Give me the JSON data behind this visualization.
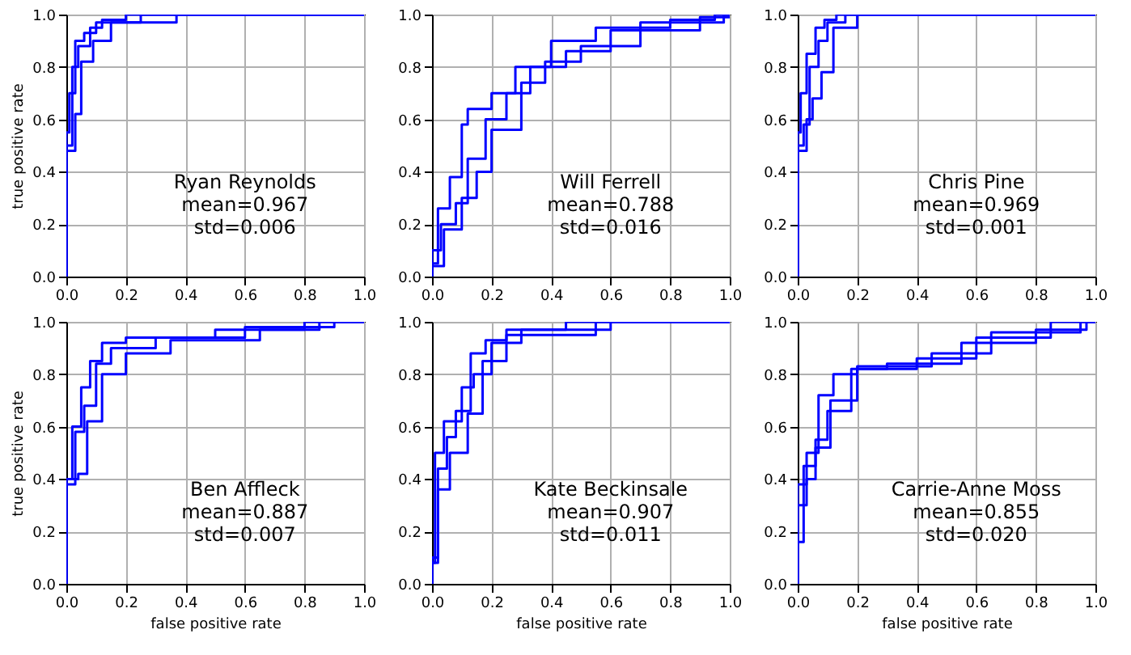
{
  "chart_data": [
    {
      "type": "line",
      "ylabel": "true positive rate",
      "annotations": [
        "Ryan Reynolds",
        "mean=0.967",
        "std=0.006"
      ],
      "grid": true,
      "xlim": [
        0,
        1
      ],
      "ylim": [
        0,
        1
      ],
      "xticks": [
        {
          "value": 0,
          "label": "0.0"
        },
        {
          "value": 0.2,
          "label": "0.2"
        },
        {
          "value": 0.4,
          "label": "0.4"
        },
        {
          "value": 0.6,
          "label": "0.6"
        },
        {
          "value": 0.8,
          "label": "0.8"
        },
        {
          "value": 1,
          "label": "1.0"
        }
      ],
      "yticks": [
        {
          "value": 0,
          "label": "0.0"
        },
        {
          "value": 0.2,
          "label": "0.2"
        },
        {
          "value": 0.4,
          "label": "0.4"
        },
        {
          "value": 0.6,
          "label": "0.6"
        },
        {
          "value": 0.8,
          "label": "0.8"
        },
        {
          "value": 1,
          "label": "1.0"
        }
      ],
      "series": [
        {
          "color": "#0000ff",
          "x": [
            0,
            0,
            0.02,
            0.02,
            0.04,
            0.04,
            0.08,
            0.08,
            0.12,
            0.12,
            0.2,
            0.2,
            1
          ],
          "values": [
            0,
            0.5,
            0.5,
            0.8,
            0.8,
            0.88,
            0.88,
            0.95,
            0.95,
            0.98,
            0.98,
            1,
            1
          ]
        },
        {
          "color": "#0000ff",
          "x": [
            0,
            0,
            0.01,
            0.01,
            0.03,
            0.03,
            0.06,
            0.06,
            0.1,
            0.1,
            0.25,
            0.25,
            1
          ],
          "values": [
            0,
            0.55,
            0.55,
            0.7,
            0.7,
            0.9,
            0.9,
            0.93,
            0.93,
            0.97,
            0.97,
            1,
            1
          ]
        },
        {
          "color": "#0000ff",
          "x": [
            0,
            0,
            0.03,
            0.03,
            0.05,
            0.05,
            0.09,
            0.09,
            0.15,
            0.15,
            0.37,
            0.37,
            1
          ],
          "values": [
            0,
            0.48,
            0.48,
            0.62,
            0.62,
            0.82,
            0.82,
            0.9,
            0.9,
            0.97,
            0.97,
            1,
            1
          ]
        }
      ]
    },
    {
      "type": "line",
      "annotations": [
        "Will Ferrell",
        "mean=0.788",
        "std=0.016"
      ],
      "grid": true,
      "xlim": [
        0,
        1
      ],
      "ylim": [
        0,
        1
      ],
      "xticks": [
        {
          "value": 0,
          "label": "0.0"
        },
        {
          "value": 0.2,
          "label": "0.2"
        },
        {
          "value": 0.4,
          "label": "0.4"
        },
        {
          "value": 0.6,
          "label": "0.6"
        },
        {
          "value": 0.8,
          "label": "0.8"
        },
        {
          "value": 1,
          "label": "1.0"
        }
      ],
      "yticks": [
        {
          "value": 0,
          "label": "0.0"
        },
        {
          "value": 0.2,
          "label": "0.2"
        },
        {
          "value": 0.4,
          "label": "0.4"
        },
        {
          "value": 0.6,
          "label": "0.6"
        },
        {
          "value": 0.8,
          "label": "0.8"
        },
        {
          "value": 1,
          "label": "1.0"
        }
      ],
      "series": [
        {
          "color": "#0000ff",
          "x": [
            0,
            0,
            0.02,
            0.02,
            0.06,
            0.06,
            0.1,
            0.1,
            0.12,
            0.12,
            0.2,
            0.2,
            0.28,
            0.28,
            0.4,
            0.4,
            0.55,
            0.55,
            0.8,
            0.8,
            0.95,
            0.95,
            1
          ],
          "values": [
            0,
            0.05,
            0.05,
            0.26,
            0.26,
            0.38,
            0.38,
            0.58,
            0.58,
            0.64,
            0.64,
            0.7,
            0.7,
            0.8,
            0.8,
            0.9,
            0.9,
            0.95,
            0.95,
            0.98,
            0.98,
            1,
            1
          ]
        },
        {
          "color": "#0000ff",
          "x": [
            0,
            0,
            0.03,
            0.03,
            0.08,
            0.08,
            0.12,
            0.12,
            0.18,
            0.18,
            0.25,
            0.25,
            0.33,
            0.33,
            0.45,
            0.45,
            0.6,
            0.6,
            0.9,
            0.9,
            1
          ],
          "values": [
            0,
            0.1,
            0.1,
            0.2,
            0.2,
            0.28,
            0.28,
            0.45,
            0.45,
            0.6,
            0.6,
            0.7,
            0.7,
            0.8,
            0.8,
            0.86,
            0.86,
            0.94,
            0.94,
            0.99,
            0.99
          ]
        },
        {
          "color": "#0000ff",
          "x": [
            0,
            0,
            0.04,
            0.04,
            0.1,
            0.1,
            0.15,
            0.15,
            0.2,
            0.2,
            0.3,
            0.3,
            0.38,
            0.38,
            0.5,
            0.5,
            0.7,
            0.7,
            0.98,
            0.98,
            1
          ],
          "values": [
            0,
            0.04,
            0.04,
            0.18,
            0.18,
            0.3,
            0.3,
            0.4,
            0.4,
            0.56,
            0.56,
            0.74,
            0.74,
            0.82,
            0.82,
            0.88,
            0.88,
            0.97,
            0.97,
            1,
            1
          ]
        }
      ]
    },
    {
      "type": "line",
      "annotations": [
        "Chris Pine",
        "mean=0.969",
        "std=0.001"
      ],
      "grid": true,
      "xlim": [
        0,
        1
      ],
      "ylim": [
        0,
        1
      ],
      "xticks": [
        {
          "value": 0,
          "label": "0.0"
        },
        {
          "value": 0.2,
          "label": "0.2"
        },
        {
          "value": 0.4,
          "label": "0.4"
        },
        {
          "value": 0.6,
          "label": "0.6"
        },
        {
          "value": 0.8,
          "label": "0.8"
        },
        {
          "value": 1,
          "label": "1.0"
        }
      ],
      "yticks": [
        {
          "value": 0,
          "label": "0.0"
        },
        {
          "value": 0.2,
          "label": "0.2"
        },
        {
          "value": 0.4,
          "label": "0.4"
        },
        {
          "value": 0.6,
          "label": "0.6"
        },
        {
          "value": 0.8,
          "label": "0.8"
        },
        {
          "value": 1,
          "label": "1.0"
        }
      ],
      "series": [
        {
          "color": "#0000ff",
          "x": [
            0,
            0,
            0.01,
            0.01,
            0.03,
            0.03,
            0.06,
            0.06,
            0.09,
            0.09,
            0.13,
            0.13,
            1
          ],
          "values": [
            0,
            0.55,
            0.55,
            0.7,
            0.7,
            0.85,
            0.85,
            0.95,
            0.95,
            0.98,
            0.98,
            1,
            1
          ]
        },
        {
          "color": "#0000ff",
          "x": [
            0,
            0,
            0.02,
            0.02,
            0.04,
            0.04,
            0.07,
            0.07,
            0.1,
            0.1,
            0.16,
            0.16,
            1
          ],
          "values": [
            0,
            0.5,
            0.5,
            0.58,
            0.58,
            0.8,
            0.8,
            0.9,
            0.9,
            0.97,
            0.97,
            1,
            1
          ]
        },
        {
          "color": "#0000ff",
          "x": [
            0,
            0,
            0.03,
            0.03,
            0.05,
            0.05,
            0.08,
            0.08,
            0.12,
            0.12,
            0.2,
            0.2,
            1
          ],
          "values": [
            0,
            0.48,
            0.48,
            0.6,
            0.6,
            0.68,
            0.68,
            0.78,
            0.78,
            0.95,
            0.95,
            1,
            1
          ]
        }
      ]
    },
    {
      "type": "line",
      "xlabel": "false positive rate",
      "ylabel": "true positive rate",
      "annotations": [
        "Ben Affleck",
        "mean=0.887",
        "std=0.007"
      ],
      "grid": true,
      "xlim": [
        0,
        1
      ],
      "ylim": [
        0,
        1
      ],
      "xticks": [
        {
          "value": 0,
          "label": "0.0"
        },
        {
          "value": 0.2,
          "label": "0.2"
        },
        {
          "value": 0.4,
          "label": "0.4"
        },
        {
          "value": 0.6,
          "label": "0.6"
        },
        {
          "value": 0.8,
          "label": "0.8"
        },
        {
          "value": 1,
          "label": "1.0"
        }
      ],
      "yticks": [
        {
          "value": 0,
          "label": "0.0"
        },
        {
          "value": 0.2,
          "label": "0.2"
        },
        {
          "value": 0.4,
          "label": "0.4"
        },
        {
          "value": 0.6,
          "label": "0.6"
        },
        {
          "value": 0.8,
          "label": "0.8"
        },
        {
          "value": 1,
          "label": "1.0"
        }
      ],
      "series": [
        {
          "color": "#0000ff",
          "x": [
            0,
            0,
            0.02,
            0.02,
            0.05,
            0.05,
            0.08,
            0.08,
            0.12,
            0.12,
            0.2,
            0.2,
            0.6,
            0.6,
            0.9,
            0.9,
            1
          ],
          "values": [
            0,
            0.4,
            0.4,
            0.6,
            0.6,
            0.75,
            0.75,
            0.85,
            0.85,
            0.92,
            0.92,
            0.94,
            0.94,
            0.98,
            0.98,
            1,
            1
          ]
        },
        {
          "color": "#0000ff",
          "x": [
            0,
            0,
            0.03,
            0.03,
            0.06,
            0.06,
            0.1,
            0.1,
            0.15,
            0.15,
            0.3,
            0.3,
            0.5,
            0.5,
            0.8,
            0.8,
            1
          ],
          "values": [
            0,
            0.38,
            0.38,
            0.58,
            0.58,
            0.68,
            0.68,
            0.84,
            0.84,
            0.9,
            0.9,
            0.94,
            0.94,
            0.97,
            0.97,
            1,
            1
          ]
        },
        {
          "color": "#0000ff",
          "x": [
            0,
            0,
            0.04,
            0.04,
            0.07,
            0.07,
            0.12,
            0.12,
            0.2,
            0.2,
            0.35,
            0.35,
            0.65,
            0.65,
            0.85,
            0.85,
            1
          ],
          "values": [
            0,
            0.4,
            0.4,
            0.42,
            0.42,
            0.62,
            0.62,
            0.8,
            0.8,
            0.88,
            0.88,
            0.93,
            0.93,
            0.97,
            0.97,
            1,
            1
          ]
        }
      ]
    },
    {
      "type": "line",
      "xlabel": "false positive rate",
      "annotations": [
        "Kate Beckinsale",
        "mean=0.907",
        "std=0.011"
      ],
      "grid": true,
      "xlim": [
        0,
        1
      ],
      "ylim": [
        0,
        1
      ],
      "xticks": [
        {
          "value": 0,
          "label": "0.0"
        },
        {
          "value": 0.2,
          "label": "0.2"
        },
        {
          "value": 0.4,
          "label": "0.4"
        },
        {
          "value": 0.6,
          "label": "0.6"
        },
        {
          "value": 0.8,
          "label": "0.8"
        },
        {
          "value": 1,
          "label": "1.0"
        }
      ],
      "yticks": [
        {
          "value": 0,
          "label": "0.0"
        },
        {
          "value": 0.2,
          "label": "0.2"
        },
        {
          "value": 0.4,
          "label": "0.4"
        },
        {
          "value": 0.6,
          "label": "0.6"
        },
        {
          "value": 0.8,
          "label": "0.8"
        },
        {
          "value": 1,
          "label": "1.0"
        }
      ],
      "series": [
        {
          "color": "#0000ff",
          "x": [
            0,
            0,
            0.01,
            0.01,
            0.04,
            0.04,
            0.1,
            0.1,
            0.14,
            0.14,
            0.2,
            0.2,
            0.3,
            0.3,
            0.6,
            0.6,
            1
          ],
          "values": [
            0,
            0.08,
            0.08,
            0.5,
            0.5,
            0.62,
            0.62,
            0.75,
            0.75,
            0.8,
            0.8,
            0.92,
            0.92,
            0.97,
            0.97,
            1,
            1
          ]
        },
        {
          "color": "#0000ff",
          "x": [
            0,
            0,
            0.02,
            0.02,
            0.05,
            0.05,
            0.08,
            0.08,
            0.13,
            0.13,
            0.18,
            0.18,
            0.25,
            0.25,
            0.45,
            0.45,
            1
          ],
          "values": [
            0,
            0.1,
            0.1,
            0.44,
            0.44,
            0.56,
            0.56,
            0.66,
            0.66,
            0.88,
            0.88,
            0.93,
            0.93,
            0.97,
            0.97,
            1,
            1
          ]
        },
        {
          "color": "#0000ff",
          "x": [
            0,
            0,
            0.02,
            0.02,
            0.06,
            0.06,
            0.12,
            0.12,
            0.17,
            0.17,
            0.25,
            0.25,
            0.55,
            0.55,
            1
          ],
          "values": [
            0,
            0.08,
            0.08,
            0.36,
            0.36,
            0.5,
            0.5,
            0.65,
            0.65,
            0.85,
            0.85,
            0.95,
            0.95,
            1,
            1
          ]
        }
      ]
    },
    {
      "type": "line",
      "xlabel": "false positive rate",
      "annotations": [
        "Carrie-Anne Moss",
        "mean=0.855",
        "std=0.020"
      ],
      "grid": true,
      "xlim": [
        0,
        1
      ],
      "ylim": [
        0,
        1
      ],
      "xticks": [
        {
          "value": 0,
          "label": "0.0"
        },
        {
          "value": 0.2,
          "label": "0.2"
        },
        {
          "value": 0.4,
          "label": "0.4"
        },
        {
          "value": 0.6,
          "label": "0.6"
        },
        {
          "value": 0.8,
          "label": "0.8"
        },
        {
          "value": 1,
          "label": "1.0"
        }
      ],
      "yticks": [
        {
          "value": 0,
          "label": "0.0"
        },
        {
          "value": 0.2,
          "label": "0.2"
        },
        {
          "value": 0.4,
          "label": "0.4"
        },
        {
          "value": 0.6,
          "label": "0.6"
        },
        {
          "value": 0.8,
          "label": "0.8"
        },
        {
          "value": 1,
          "label": "1.0"
        }
      ],
      "series": [
        {
          "color": "#0000ff",
          "x": [
            0,
            0,
            0.03,
            0.03,
            0.07,
            0.07,
            0.12,
            0.12,
            0.2,
            0.2,
            0.45,
            0.45,
            0.65,
            0.65,
            0.95,
            0.95,
            1
          ],
          "values": [
            0,
            0.3,
            0.3,
            0.5,
            0.5,
            0.72,
            0.72,
            0.8,
            0.8,
            0.83,
            0.83,
            0.88,
            0.88,
            0.96,
            0.96,
            1,
            1
          ]
        },
        {
          "color": "#0000ff",
          "x": [
            0,
            0,
            0.02,
            0.02,
            0.06,
            0.06,
            0.1,
            0.1,
            0.18,
            0.18,
            0.4,
            0.4,
            0.6,
            0.6,
            0.85,
            0.85,
            1
          ],
          "values": [
            0,
            0.16,
            0.16,
            0.45,
            0.45,
            0.55,
            0.55,
            0.66,
            0.66,
            0.82,
            0.82,
            0.86,
            0.86,
            0.94,
            0.94,
            1,
            1
          ]
        },
        {
          "color": "#0000ff",
          "x": [
            0,
            0,
            0.03,
            0.03,
            0.06,
            0.06,
            0.11,
            0.11,
            0.2,
            0.2,
            0.3,
            0.3,
            0.55,
            0.55,
            0.8,
            0.8,
            0.97,
            0.97,
            1
          ],
          "values": [
            0,
            0.38,
            0.38,
            0.4,
            0.4,
            0.52,
            0.52,
            0.7,
            0.7,
            0.82,
            0.82,
            0.84,
            0.84,
            0.92,
            0.92,
            0.97,
            0.97,
            1,
            1
          ]
        }
      ]
    }
  ]
}
